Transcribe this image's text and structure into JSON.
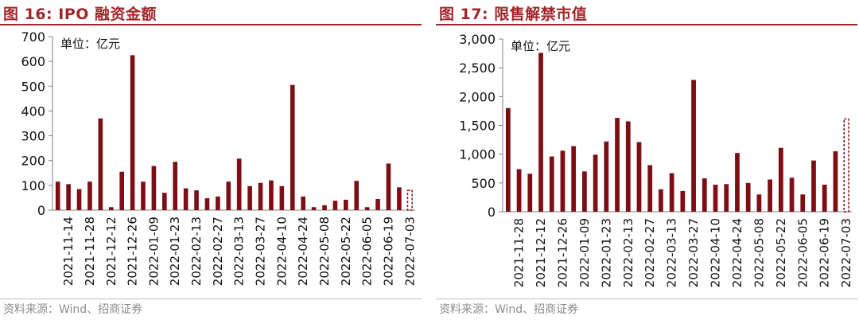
{
  "source": "资料来源：Wind、招商证券",
  "colors": {
    "title": "#a3262a",
    "bar": "#7d0f14",
    "axis": "#7f7f7f"
  },
  "chart_data": [
    {
      "type": "bar",
      "title": "图 16:  IPO 融资金额",
      "unit_label": "单位：亿元",
      "ylim": [
        0,
        700
      ],
      "y_ticks": [
        0,
        100,
        200,
        300,
        400,
        500,
        600,
        700
      ],
      "y_tick_labels": [
        "0",
        "100",
        "200",
        "300",
        "400",
        "500",
        "600",
        "700"
      ],
      "x_tick_labels": [
        "2021-11-14",
        "2021-11-28",
        "2021-12-12",
        "2021-12-26",
        "2022-01-09",
        "2022-01-23",
        "2022-02-13",
        "2022-02-27",
        "2022-03-13",
        "2022-03-27",
        "2022-04-10",
        "2022-04-24",
        "2022-05-08",
        "2022-05-22",
        "2022-06-05",
        "2022-06-19",
        "2022-07-03"
      ],
      "values": [
        115,
        105,
        85,
        115,
        370,
        12,
        155,
        625,
        115,
        178,
        70,
        195,
        88,
        80,
        48,
        55,
        115,
        208,
        97,
        110,
        120,
        97,
        505,
        55,
        12,
        20,
        38,
        42,
        118,
        12,
        45,
        188,
        92
      ],
      "last_bar_dashed": 80,
      "grid": false
    },
    {
      "type": "bar",
      "title": "图 17:  限售解禁市值",
      "unit_label": "单位：亿元",
      "ylim": [
        0,
        3000
      ],
      "y_ticks": [
        0,
        500,
        1000,
        1500,
        2000,
        2500,
        3000
      ],
      "y_tick_labels": [
        "0",
        "500",
        "1,000",
        "1,500",
        "2,000",
        "2,500",
        "3,000"
      ],
      "x_tick_labels": [
        "2021-11-28",
        "2021-12-12",
        "2021-12-26",
        "2022-01-09",
        "2022-01-23",
        "2022-02-13",
        "2022-02-27",
        "2022-03-13",
        "2022-03-27",
        "2022-04-10",
        "2022-04-24",
        "2022-05-08",
        "2022-05-22",
        "2022-06-05",
        "2022-06-19",
        "2022-07-03"
      ],
      "values": [
        1800,
        740,
        660,
        2760,
        960,
        1060,
        1140,
        700,
        990,
        1220,
        1630,
        1570,
        1210,
        810,
        390,
        670,
        360,
        2290,
        580,
        470,
        480,
        1020,
        500,
        300,
        560,
        1110,
        590,
        300,
        890,
        470,
        1050
      ],
      "last_bar_dashed": 1610,
      "grid": false
    }
  ]
}
